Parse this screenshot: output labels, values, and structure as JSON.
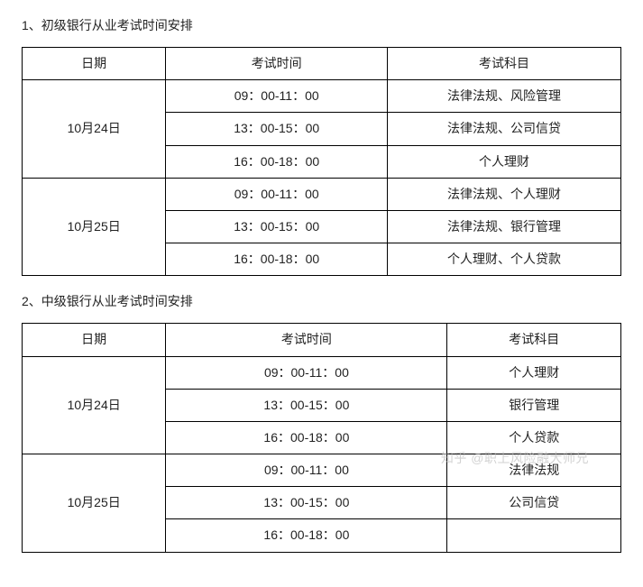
{
  "section1": {
    "title": "1、初级银行从业考试时间安排",
    "headers": {
      "c1": "日期",
      "c2": "考试时间",
      "c3": "考试科目"
    },
    "col_widths": [
      "24%",
      "37%",
      "39%"
    ],
    "groups": [
      {
        "date": "10月24日",
        "rows": [
          {
            "time": "09：00-11：00",
            "subject": "法律法规、风险管理"
          },
          {
            "time": "13：00-15：00",
            "subject": "法律法规、公司信贷"
          },
          {
            "time": "16：00-18：00",
            "subject": "个人理财"
          }
        ]
      },
      {
        "date": "10月25日",
        "rows": [
          {
            "time": "09：00-11：00",
            "subject": "法律法规、个人理财"
          },
          {
            "time": "13：00-15：00",
            "subject": "法律法规、银行管理"
          },
          {
            "time": "16：00-18：00",
            "subject": "个人理财、个人贷款"
          }
        ]
      }
    ]
  },
  "section2": {
    "title": "2、中级银行从业考试时间安排",
    "headers": {
      "c1": "日期",
      "c2": "考试时间",
      "c3": "考试科目"
    },
    "col_widths": [
      "24%",
      "47%",
      "29%"
    ],
    "groups": [
      {
        "date": "10月24日",
        "rows": [
          {
            "time": "09：00-11：00",
            "subject": "个人理财"
          },
          {
            "time": "13：00-15：00",
            "subject": "银行管理"
          },
          {
            "time": "16：00-18：00",
            "subject": "个人贷款"
          }
        ]
      },
      {
        "date": "10月25日",
        "rows": [
          {
            "time": "09：00-11：00",
            "subject": "法律法规"
          },
          {
            "time": "13：00-15：00",
            "subject": "公司信贷"
          },
          {
            "time": "16：00-18：00",
            "subject": ""
          }
        ]
      }
    ]
  },
  "watermark": "知乎 @职上风险融大师兄"
}
